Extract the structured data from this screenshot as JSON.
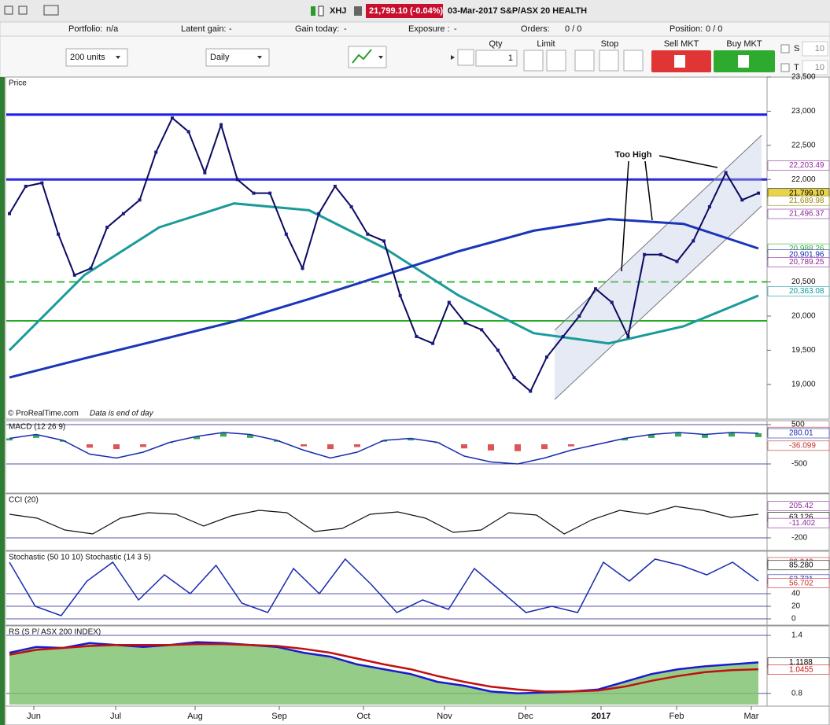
{
  "toolbar": {
    "symbol": "XHJ",
    "quote": "21,799.10 (-0.04%)",
    "instrument": "03-Mar-2017 S&P/ASX 20 HEALTH"
  },
  "status": [
    {
      "label": "Portfolio:",
      "value": "n/a"
    },
    {
      "label": "Latent gain:",
      "value": "-"
    },
    {
      "label": "Gain today:",
      "value": "-"
    },
    {
      "label": "Exposure :",
      "value": "-"
    },
    {
      "label": "Orders:",
      "value": "0 / 0"
    },
    {
      "label": "Position:",
      "value": "0 / 0"
    }
  ],
  "order_bar": {
    "units": "200 units",
    "period": "Daily",
    "qty_label": "Qty",
    "qty": "1",
    "limit": "Limit",
    "stop": "Stop",
    "sell": "Sell MKT",
    "buy": "Buy MKT",
    "s_label": "S",
    "s_qty": "10",
    "t_label": "T",
    "t_qty": "10"
  },
  "x_axis": [
    "Jun",
    "Jul",
    "Aug",
    "Sep",
    "Oct",
    "Nov",
    "Dec",
    "2017",
    "Feb",
    "Mar"
  ],
  "price": {
    "title": "Price",
    "credit": "© ProRealTime.com",
    "note": "Data is end of day",
    "annotation": "Too High",
    "ylim": [
      18710,
      23500
    ],
    "yticks": [
      {
        "value": 23500,
        "label": "23,500"
      },
      {
        "value": 23000,
        "label": "23,000"
      },
      {
        "value": 22500,
        "label": "22,500"
      },
      {
        "value": 22000,
        "label": "22,000"
      },
      {
        "value": 20500,
        "label": "20,500"
      },
      {
        "value": 20000,
        "label": "20,000"
      },
      {
        "value": 19500,
        "label": "19,500"
      },
      {
        "value": 19000,
        "label": "19,000"
      }
    ],
    "close": [
      21500,
      21900,
      21950,
      21200,
      20600,
      20700,
      21300,
      21500,
      21700,
      22400,
      22900,
      22700,
      22100,
      22800,
      22000,
      21800,
      21800,
      21200,
      20700,
      21500,
      21900,
      21600,
      21200,
      21100,
      20300,
      19700,
      19600,
      20200,
      19900,
      19800,
      19500,
      19100,
      18900,
      19400,
      19700,
      20000,
      20400,
      20200,
      19700,
      20900,
      20900,
      20800,
      21100,
      21600,
      22100,
      21700,
      21800
    ],
    "ma_long": [
      19100,
      19380,
      19650,
      19920,
      20250,
      20600,
      20950,
      21250,
      21420,
      21350,
      20990
    ],
    "ma_mid": [
      19500,
      20600,
      21300,
      21650,
      21550,
      21000,
      20300,
      19750,
      19600,
      19850,
      20300
    ],
    "levels": [
      {
        "value": 22950,
        "color": "#1a1aee"
      },
      {
        "value": 22000,
        "color": "#2a2ad8"
      },
      {
        "value": 20500,
        "color": "#33bb33"
      },
      {
        "value": 19930,
        "color": "#22aa22"
      }
    ],
    "value_labels": [
      {
        "value": 22203.49,
        "label": "22,203.49",
        "color": "#8a2a9a"
      },
      {
        "value": 21799.1,
        "label": "21,799.10",
        "color": "#000000"
      },
      {
        "value": 21689.98,
        "label": "21,689.98",
        "color": "#9a8a10"
      },
      {
        "value": 21496.37,
        "label": "21,496.37",
        "color": "#8a2a9a"
      },
      {
        "value": 20988.26,
        "label": "20,988.26",
        "color": "#33aa33"
      },
      {
        "value": 20901.96,
        "label": "20,901.96",
        "color": "#1a2ab0"
      },
      {
        "value": 20789.25,
        "label": "20,789.25",
        "color": "#8a2a9a"
      },
      {
        "value": 20363.08,
        "label": "20,363.08",
        "color": "#129a9a"
      }
    ]
  },
  "macd": {
    "title": "MACD (12 26 9)",
    "ylim": [
      -600,
      560
    ],
    "yticks": [
      500,
      -500
    ],
    "values": [
      150,
      250,
      100,
      -250,
      -350,
      -200,
      50,
      200,
      300,
      250,
      100,
      -150,
      -350,
      -200,
      100,
      150,
      50,
      -300,
      -450,
      -500,
      -350,
      -150,
      0,
      150,
      250,
      300,
      250,
      300,
      280
    ],
    "value_labels": [
      {
        "value": 316.11,
        "label": "316.11",
        "color": "#c03030"
      },
      {
        "value": 280.01,
        "label": "280.01",
        "color": "#1a2ab0"
      },
      {
        "value": -36.099,
        "label": "-36.099",
        "color": "#c03030"
      }
    ]
  },
  "cci": {
    "title": "CCI (20)",
    "ylim": [
      -340,
      340
    ],
    "yticks": [
      -200
    ],
    "values": [
      100,
      50,
      -100,
      -150,
      50,
      120,
      100,
      -50,
      80,
      150,
      120,
      -120,
      -80,
      100,
      130,
      50,
      -130,
      -100,
      120,
      90,
      -150,
      30,
      150,
      100,
      200,
      150,
      60,
      100
    ],
    "value_labels": [
      {
        "value": 205.42,
        "label": "205.42",
        "color": "#8a2a9a"
      },
      {
        "value": 63.126,
        "label": "63.126",
        "color": "#000000"
      },
      {
        "value": -11.402,
        "label": "-11.402",
        "color": "#8a2a9a"
      }
    ]
  },
  "stochastic": {
    "title": "Stochastic (50 10 10) Stochastic (14 3 5)",
    "ylim": [
      -7.5,
      105
    ],
    "yticks": [
      40,
      20,
      0
    ],
    "values": [
      90,
      20,
      5,
      60,
      90,
      30,
      70,
      40,
      85,
      25,
      10,
      80,
      40,
      95,
      55,
      10,
      30,
      15,
      80,
      45,
      10,
      20,
      10,
      90,
      60,
      95,
      85,
      70,
      90,
      60
    ],
    "value_labels": [
      {
        "value": 89.949,
        "label": "89.949",
        "color": "#c03030"
      },
      {
        "value": 85.28,
        "label": "85.280",
        "color": "#000000"
      },
      {
        "value": 62.731,
        "label": "62.731",
        "color": "#1a2ab0"
      },
      {
        "value": 56.702,
        "label": "56.702",
        "color": "#c03030"
      }
    ]
  },
  "rs": {
    "title": "RS (S P/ ASX 200 INDEX)",
    "ylim": [
      0.685,
      1.481
    ],
    "yticks": [
      1.4,
      0.8
    ],
    "values": [
      1.22,
      1.28,
      1.27,
      1.32,
      1.3,
      1.28,
      1.3,
      1.33,
      1.32,
      1.3,
      1.28,
      1.22,
      1.18,
      1.1,
      1.05,
      1.0,
      0.92,
      0.88,
      0.82,
      0.8,
      0.81,
      0.82,
      0.84,
      0.92,
      1.0,
      1.05,
      1.08,
      1.1,
      1.12
    ],
    "average": [
      1.2,
      1.25,
      1.27,
      1.29,
      1.3,
      1.3,
      1.3,
      1.31,
      1.31,
      1.3,
      1.29,
      1.26,
      1.22,
      1.16,
      1.1,
      1.05,
      0.98,
      0.92,
      0.87,
      0.84,
      0.82,
      0.82,
      0.83,
      0.87,
      0.93,
      0.98,
      1.02,
      1.04,
      1.05
    ],
    "value_labels": [
      {
        "value": 1.1188,
        "label": "1.1188",
        "color": "#000000"
      },
      {
        "value": 1.0455,
        "label": "1.0455",
        "color": "#c01010"
      }
    ]
  }
}
